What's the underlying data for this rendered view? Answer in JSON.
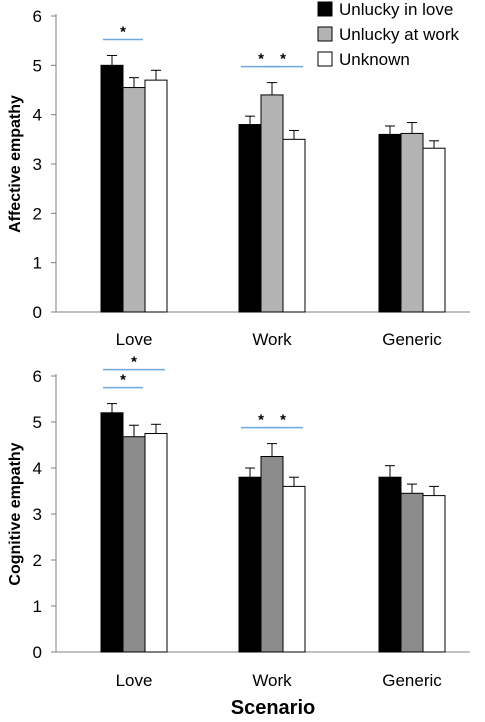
{
  "chart_data": [
    {
      "type": "bar",
      "categories": [
        "Love",
        "Work",
        "Generic"
      ],
      "ylabel": "Affective empathy",
      "xlabel": "",
      "ylim": [
        0,
        6
      ],
      "yticks": [
        "0",
        "1",
        "2",
        "3",
        "4",
        "5",
        "6"
      ],
      "grid": false,
      "series_colors": [
        "#000000",
        "#b3b3b3",
        "#ffffff"
      ],
      "series": [
        {
          "name": "Unlucky in love",
          "values": [
            5.0,
            3.8,
            3.6
          ],
          "errors": [
            0.2,
            0.17,
            0.17
          ]
        },
        {
          "name": "Unlucky at work",
          "values": [
            4.55,
            4.4,
            3.62
          ],
          "errors": [
            0.2,
            0.25,
            0.22
          ]
        },
        {
          "name": "Unknown",
          "values": [
            4.7,
            3.5,
            3.32
          ],
          "errors": [
            0.2,
            0.18,
            0.15
          ]
        }
      ],
      "significance": [
        {
          "category": 0,
          "between": [
            0,
            1
          ],
          "level": 0,
          "label": "*"
        },
        {
          "category": 1,
          "between": [
            0,
            1
          ],
          "level": 0,
          "label": "*"
        },
        {
          "category": 1,
          "between": [
            1,
            2
          ],
          "level": 0,
          "label": "*"
        }
      ]
    },
    {
      "type": "bar",
      "categories": [
        "Love",
        "Work",
        "Generic"
      ],
      "ylabel": "Cognitive empathy",
      "xlabel": "Scenario",
      "ylim": [
        0,
        6
      ],
      "yticks": [
        "0",
        "1",
        "2",
        "3",
        "4",
        "5",
        "6"
      ],
      "grid": false,
      "series_colors": [
        "#000000",
        "#8c8c8c",
        "#ffffff"
      ],
      "series": [
        {
          "name": "Unlucky in love",
          "values": [
            5.2,
            3.8,
            3.8
          ],
          "errors": [
            0.2,
            0.2,
            0.25
          ]
        },
        {
          "name": "Unlucky at work",
          "values": [
            4.68,
            4.25,
            3.45
          ],
          "errors": [
            0.25,
            0.28,
            0.2
          ]
        },
        {
          "name": "Unknown",
          "values": [
            4.75,
            3.6,
            3.4
          ],
          "errors": [
            0.2,
            0.2,
            0.2
          ]
        }
      ],
      "significance": [
        {
          "category": 0,
          "between": [
            0,
            1
          ],
          "level": 0,
          "label": "*"
        },
        {
          "category": 0,
          "between": [
            0,
            2
          ],
          "level": 1,
          "label": "*"
        },
        {
          "category": 1,
          "between": [
            0,
            1
          ],
          "level": 0,
          "label": "*"
        },
        {
          "category": 1,
          "between": [
            1,
            2
          ],
          "level": 0,
          "label": "*"
        }
      ]
    }
  ],
  "legend": {
    "placement": "top-right",
    "items": [
      {
        "label": "Unlucky in love",
        "color": "#000000"
      },
      {
        "label": "Unlucky at work",
        "color": "#b3b3b3"
      },
      {
        "label": "Unknown",
        "color": "#ffffff"
      }
    ]
  },
  "colors": {
    "significance_line": "#6fa8dc",
    "axis": "#808080"
  }
}
